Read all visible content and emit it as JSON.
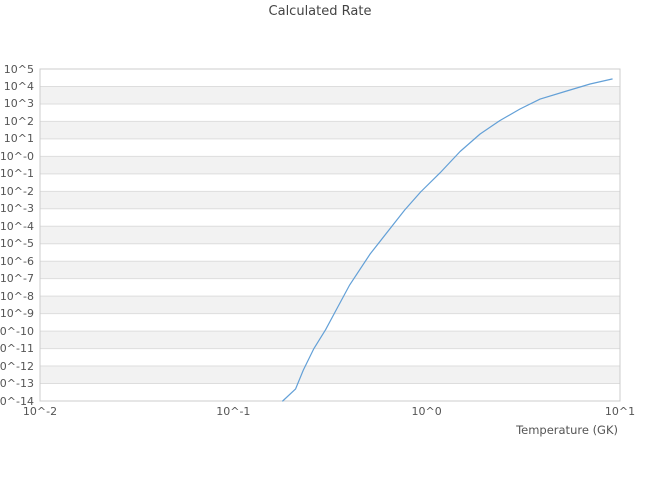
{
  "chart": {
    "title": "Calculated Rate",
    "xlabel": "Temperature (GK)"
  },
  "chart_data": {
    "type": "line",
    "title": "Calculated Rate",
    "xlabel": "Temperature (GK)",
    "ylabel": "",
    "x_scale": "log",
    "y_scale": "log",
    "x_log_range": [
      -2,
      1
    ],
    "y_log_range": [
      -14,
      5
    ],
    "grid": "horizontal gridlines with alternating shaded bands, no vertical gridlines",
    "legend": "none",
    "x_ticks": [
      {
        "label": "10^-2",
        "log": -2
      },
      {
        "label": "10^-1",
        "log": -1
      },
      {
        "label": "10^0",
        "log": 0
      },
      {
        "label": "10^1",
        "log": 1
      }
    ],
    "y_ticks": [
      {
        "label": "10^5",
        "log": 5
      },
      {
        "label": "10^4",
        "log": 4
      },
      {
        "label": "10^3",
        "log": 3
      },
      {
        "label": "10^2",
        "log": 2
      },
      {
        "label": "10^1",
        "log": 1
      },
      {
        "label": "10^-0",
        "log": 0
      },
      {
        "label": "10^-1",
        "log": -1
      },
      {
        "label": "10^-2",
        "log": -2
      },
      {
        "label": "10^-3",
        "log": -3
      },
      {
        "label": "10^-4",
        "log": -4
      },
      {
        "label": "10^-5",
        "log": -5
      },
      {
        "label": "10^-6",
        "log": -6
      },
      {
        "label": "10^-7",
        "log": -7
      },
      {
        "label": "10^-8",
        "log": -8
      },
      {
        "label": "10^-9",
        "log": -9
      },
      {
        "label": "10^-10",
        "log": -10
      },
      {
        "label": "10^-11",
        "log": -11
      },
      {
        "label": "10^-12",
        "log": -12
      },
      {
        "label": "10^-13",
        "log": -13
      },
      {
        "label": "10^-14",
        "log": -14
      }
    ],
    "series": [
      {
        "name": "Calculated Rate",
        "temperature_GK": [
          0.18,
          0.21,
          0.23,
          0.26,
          0.3,
          0.34,
          0.4,
          0.51,
          0.77,
          0.93,
          1.17,
          1.49,
          1.89,
          2.39,
          3.04,
          3.86,
          5.3,
          7.0,
          9.1
        ],
        "rate": [
          1e-14,
          4.9e-14,
          5.9e-13,
          9.3e-12,
          1.2e-10,
          1.6e-09,
          4.4e-08,
          2.6e-06,
          0.00085,
          0.0091,
          0.11,
          1.9,
          19,
          112,
          513,
          1900,
          5500,
          13800,
          26900
        ]
      }
    ],
    "style": {
      "line_color": "#5b9bd5",
      "band_color": "#f2f2f2",
      "grid_color": "#dddddd",
      "border_color": "#cccccc",
      "title_color": "#444444",
      "label_color": "#555555",
      "background": "#ffffff"
    }
  }
}
